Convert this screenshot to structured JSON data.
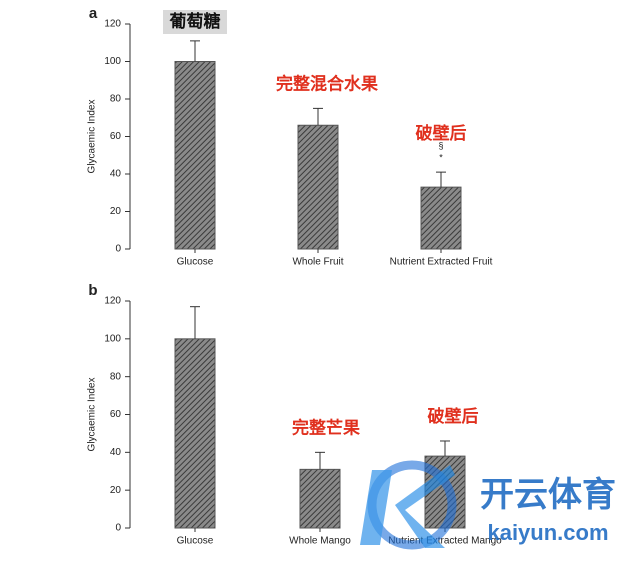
{
  "chart_data": [
    {
      "type": "bar",
      "panel": "a",
      "ylabel": "Glycaemic Index",
      "categories": [
        "Glucose",
        "Whole Fruit",
        "Nutrient Extracted Fruit"
      ],
      "values": [
        100,
        66,
        33
      ],
      "errors": [
        11,
        9,
        8
      ],
      "color": "#555555",
      "annotations": [
        "葡萄糖",
        "完整混合水果",
        "破壁后"
      ],
      "markers": [
        null,
        null,
        [
          "§",
          "*"
        ]
      ],
      "ylim": [
        0,
        120
      ],
      "yticks": [
        0,
        20,
        40,
        60,
        80,
        100,
        120
      ]
    },
    {
      "type": "bar",
      "panel": "b",
      "ylabel": "Glycaemic Index",
      "categories": [
        "Glucose",
        "Whole Mango",
        "Nutrient Extracted Mango"
      ],
      "values": [
        100,
        31,
        38
      ],
      "errors": [
        17,
        9,
        8
      ],
      "color": "#555555",
      "annotations": [
        null,
        "完整芒果",
        "破壁后"
      ],
      "ylim": [
        0,
        120
      ],
      "yticks": [
        0,
        20,
        40,
        60,
        80,
        100,
        120
      ]
    }
  ],
  "watermark": {
    "brand": "开云体育",
    "site": "kaiyun.com"
  }
}
